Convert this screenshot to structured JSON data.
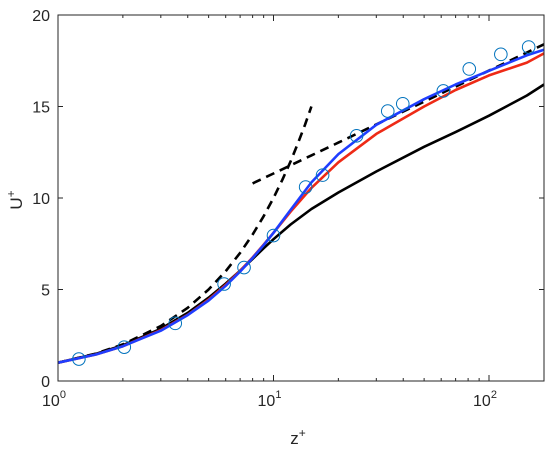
{
  "chart_data": {
    "type": "line",
    "title": "",
    "xlabel": "z",
    "xlabel_sup": "+",
    "ylabel": "U",
    "ylabel_sup": "+",
    "xscale": "log",
    "xlim": [
      1,
      180
    ],
    "ylim": [
      0,
      20
    ],
    "grid": false,
    "legend": "none",
    "xticks": [
      {
        "value": 1,
        "base": "10",
        "exp": "0"
      },
      {
        "value": 10,
        "base": "10",
        "exp": "1"
      },
      {
        "value": 100,
        "base": "10",
        "exp": "2"
      }
    ],
    "yticks": [
      0,
      5,
      10,
      15,
      20
    ],
    "series": [
      {
        "kind": "line",
        "style": "dashed",
        "color": "#000000",
        "x": [
          1,
          1.5,
          2,
          3,
          4,
          5,
          6,
          7,
          8,
          9,
          10,
          11,
          12,
          13,
          14,
          15
        ],
        "y": [
          1,
          1.5,
          2,
          3,
          4,
          5,
          6,
          7,
          8,
          9,
          10,
          11,
          12,
          13,
          14,
          15
        ]
      },
      {
        "kind": "line",
        "style": "dashed",
        "color": "#000000",
        "x": [
          8,
          10,
          15,
          20,
          30,
          50,
          70,
          100,
          150,
          180
        ],
        "y": [
          10.8,
          11.34,
          12.33,
          13.03,
          14.02,
          15.27,
          16.09,
          16.96,
          17.95,
          18.4
        ]
      },
      {
        "kind": "line",
        "style": "solid",
        "color": "#000000",
        "x": [
          1,
          1.5,
          2,
          3,
          4,
          5,
          6,
          7,
          8,
          9,
          10,
          12,
          15,
          20,
          30,
          50,
          70,
          100,
          150,
          180
        ],
        "y": [
          1.0,
          1.48,
          1.95,
          2.85,
          3.72,
          4.55,
          5.32,
          6.03,
          6.67,
          7.25,
          7.75,
          8.55,
          9.4,
          10.3,
          11.45,
          12.8,
          13.6,
          14.5,
          15.6,
          16.2
        ]
      },
      {
        "kind": "line",
        "style": "solid",
        "color": "#ee2a16",
        "x": [
          1,
          1.5,
          2,
          3,
          4,
          5,
          6,
          7,
          8,
          9,
          10,
          12,
          15,
          20,
          30,
          50,
          70,
          100,
          150,
          180
        ],
        "y": [
          1.0,
          1.45,
          1.9,
          2.78,
          3.62,
          4.45,
          5.25,
          6.02,
          6.75,
          7.45,
          8.1,
          9.25,
          10.55,
          11.95,
          13.5,
          15.0,
          15.9,
          16.7,
          17.4,
          17.9
        ]
      },
      {
        "kind": "line",
        "style": "solid",
        "color": "#1f3dff",
        "x": [
          1,
          1.5,
          2,
          3,
          4,
          5,
          6,
          7,
          8,
          9,
          10,
          12,
          15,
          20,
          30,
          50,
          70,
          100,
          150,
          180
        ],
        "y": [
          1.0,
          1.45,
          1.9,
          2.75,
          3.6,
          4.4,
          5.2,
          5.98,
          6.72,
          7.42,
          8.1,
          9.35,
          10.85,
          12.4,
          14.0,
          15.4,
          16.2,
          16.95,
          17.8,
          18.1
        ]
      },
      {
        "kind": "scatter",
        "marker": "circle-open",
        "color": "#0072bd",
        "x": [
          1.25,
          2.03,
          3.5,
          5.9,
          7.3,
          10.0,
          14.1,
          16.9,
          24.3,
          33.9,
          39.8,
          61.4,
          81.0,
          113.5,
          152.8
        ],
        "y": [
          1.2,
          1.85,
          3.15,
          5.3,
          6.2,
          7.95,
          10.6,
          11.25,
          13.4,
          14.75,
          15.15,
          15.85,
          17.05,
          17.85,
          18.25
        ]
      }
    ]
  }
}
